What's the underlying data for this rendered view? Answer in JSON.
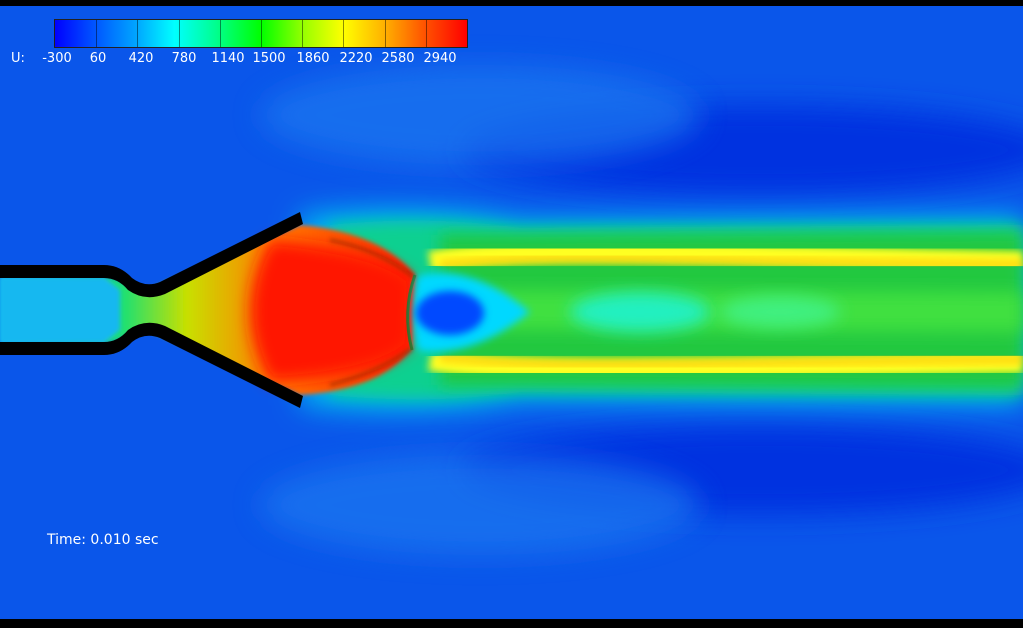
{
  "legend": {
    "variable": "U:",
    "labels": [
      "-300",
      "60",
      "420",
      "780",
      "1140",
      "1500",
      "1860",
      "2220",
      "2580",
      "2940"
    ]
  },
  "time_label": "Time: 0.010 sec"
}
